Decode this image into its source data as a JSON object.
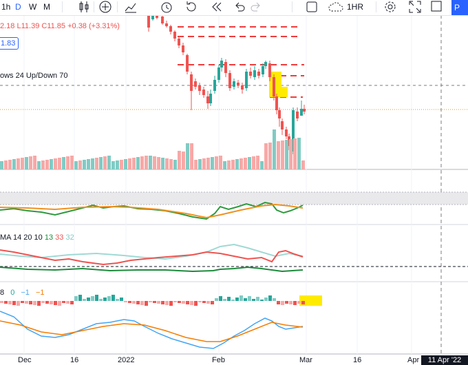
{
  "toolbar": {
    "interval_1h": "1h",
    "interval_d": "D",
    "interval_w": "W",
    "interval_m": "M",
    "interval_dropdown": "1HR",
    "publish_label": "P",
    "icons": [
      "candles-icon",
      "add-indicator-icon",
      "chart-type-icon",
      "alert-icon",
      "replay-icon",
      "undo-icon",
      "redo-icon",
      "layout-square-icon",
      "cloud-save-icon",
      "settings-icon",
      "fullscreen-icon",
      "snapshot-icon"
    ]
  },
  "main": {
    "ohlc": {
      "h_label": "2.18",
      "l_label": "L11.39",
      "c_label": "C11.85",
      "change": "+0.38 (+3.31%)"
    },
    "price_box": "1.83",
    "volume_legend": "ows 24 Up/Down 70"
  },
  "ma_panel": {
    "legend_prefix": "MA 14 20 10",
    "v1": "13",
    "v2": "33",
    "v3": "32"
  },
  "macd_panel": {
    "legend_prefix": "8",
    "v1": "0",
    "v2": "−1",
    "v3": "−1"
  },
  "time_axis": {
    "labels": [
      "Dec",
      "16",
      "2022",
      "Feb",
      "16",
      "Mar",
      "16",
      "Apr"
    ],
    "cursor_date": "11 Apr '22"
  },
  "colors": {
    "up": "#26a69a",
    "down": "#ef5350",
    "volume_up": "#80cbc4",
    "volume_down": "#f7a9a7",
    "ma_red": "#ef5350",
    "ma_teal": "#9fd9d4",
    "ma_green": "#1b8a3a",
    "osc_green": "#2e9a3e",
    "osc_orange": "#f0911f",
    "macd_blue": "#42a5f5",
    "macd_orange": "#f57c00",
    "highlight": "#ffeb00",
    "accent": "#2962ff"
  }
}
